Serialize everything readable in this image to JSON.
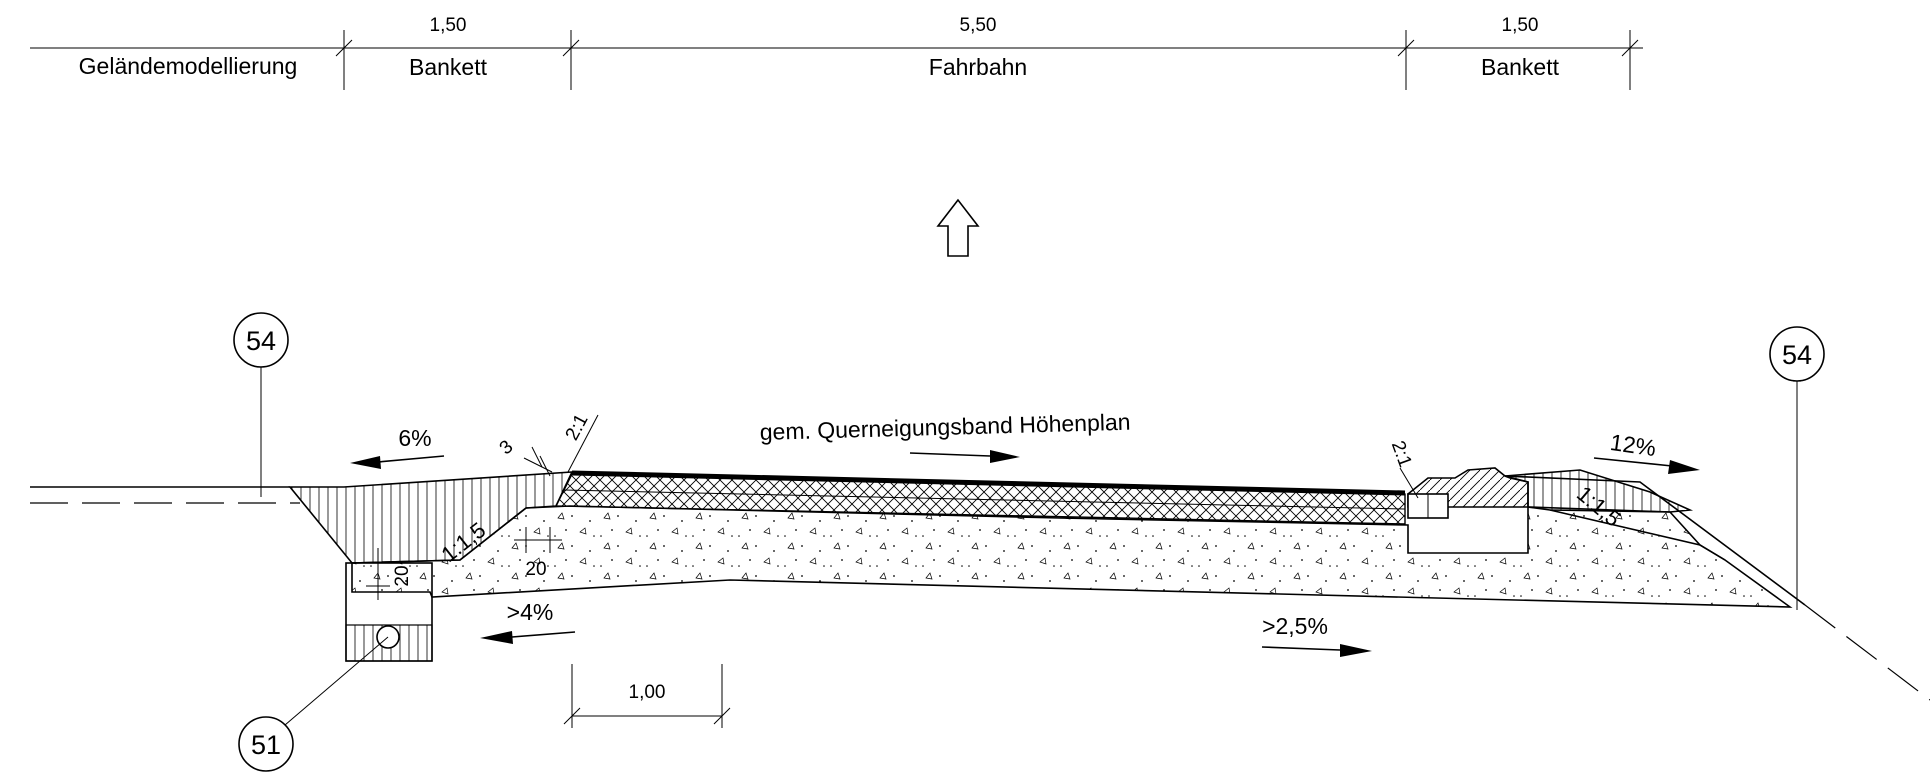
{
  "dimension_bar": {
    "segments": [
      {
        "label": "Geländemodellierung",
        "value": ""
      },
      {
        "label": "Bankett",
        "value": "1,50"
      },
      {
        "label": "Fahrbahn",
        "value": "5,50"
      },
      {
        "label": "Bankett",
        "value": "1,50"
      }
    ]
  },
  "annotations": {
    "crossfall_note": "gem. Querneigungsband Höhenplan",
    "slope_left_bankett": "6%",
    "slope_right_bankett": "12%",
    "slope_subgrade_left": ">4%",
    "slope_subgrade_right": ">2,5%",
    "embankment_left": "1:1,5",
    "embankment_right": "1:1,5",
    "edge_ratio_left": "2:1",
    "edge_ratio_right": "2:1",
    "dim_3": "3",
    "dim_20_step": "20",
    "dim_20_trench": "20",
    "scale_bar": "1,00"
  },
  "markers": {
    "left_54": "54",
    "right_54": "54",
    "drain_51": "51"
  }
}
